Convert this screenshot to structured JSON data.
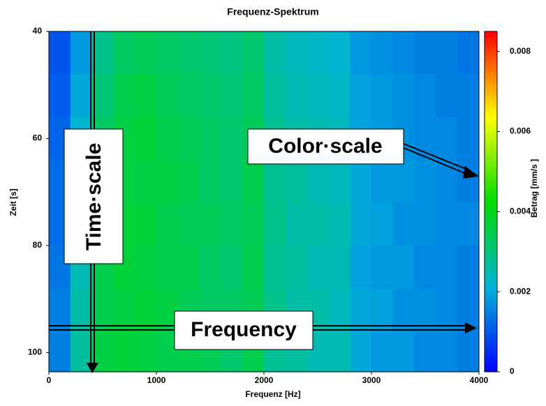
{
  "chart_data": {
    "type": "heatmap",
    "title": "Frequenz-Spektrum",
    "x_label": "Frequenz [Hz]",
    "y_label": "Zeit [s]",
    "colorbar_label": "Betrag [mm/s ]",
    "x": [
      100,
      300,
      500,
      700,
      900,
      1100,
      1300,
      1500,
      1700,
      1900,
      2100,
      2300,
      2500,
      2700,
      2900,
      3100,
      3300,
      3500,
      3700,
      3900
    ],
    "y": [
      44,
      52,
      60,
      68,
      76,
      84,
      92,
      100
    ],
    "z": [
      [
        0.001,
        0.0018,
        0.0029,
        0.0033,
        0.0034,
        0.0033,
        0.0032,
        0.0031,
        0.003,
        0.0032,
        0.0026,
        0.0024,
        0.0023,
        0.0022,
        0.0018,
        0.0017,
        0.0016,
        0.0015,
        0.0015,
        0.0014
      ],
      [
        0.0011,
        0.002,
        0.0031,
        0.0035,
        0.0036,
        0.0034,
        0.0033,
        0.0032,
        0.0031,
        0.0033,
        0.0027,
        0.0025,
        0.0024,
        0.0023,
        0.0019,
        0.0018,
        0.0017,
        0.0016,
        0.0015,
        0.0015
      ],
      [
        0.0012,
        0.0022,
        0.0033,
        0.0036,
        0.0037,
        0.0035,
        0.0034,
        0.0033,
        0.0032,
        0.0034,
        0.0028,
        0.0026,
        0.0025,
        0.0024,
        0.0019,
        0.0018,
        0.0017,
        0.0016,
        0.0016,
        0.0015
      ],
      [
        0.0013,
        0.0023,
        0.0034,
        0.0036,
        0.0036,
        0.0036,
        0.0035,
        0.0033,
        0.0032,
        0.0035,
        0.0028,
        0.0027,
        0.0025,
        0.0024,
        0.002,
        0.0018,
        0.0018,
        0.0017,
        0.0016,
        0.0015
      ],
      [
        0.0013,
        0.0024,
        0.0034,
        0.0037,
        0.0037,
        0.0035,
        0.0034,
        0.0034,
        0.0033,
        0.0034,
        0.0029,
        0.0026,
        0.0026,
        0.0025,
        0.002,
        0.0019,
        0.0017,
        0.0017,
        0.0016,
        0.0016
      ],
      [
        0.0014,
        0.0025,
        0.0035,
        0.0037,
        0.0036,
        0.0035,
        0.0035,
        0.0033,
        0.0032,
        0.0035,
        0.0028,
        0.0027,
        0.0025,
        0.0025,
        0.0019,
        0.0018,
        0.0018,
        0.0016,
        0.0016,
        0.0015
      ],
      [
        0.0015,
        0.0026,
        0.0035,
        0.0036,
        0.0037,
        0.0036,
        0.0034,
        0.0033,
        0.0033,
        0.0034,
        0.0029,
        0.0026,
        0.0026,
        0.0024,
        0.002,
        0.0019,
        0.0017,
        0.0017,
        0.0016,
        0.0015
      ],
      [
        0.0015,
        0.0027,
        0.0036,
        0.0037,
        0.0036,
        0.0035,
        0.0035,
        0.0034,
        0.0032,
        0.0035,
        0.0028,
        0.0027,
        0.0025,
        0.0025,
        0.002,
        0.0018,
        0.0018,
        0.0016,
        0.0016,
        0.0015
      ]
    ],
    "xlim": [
      0,
      4000
    ],
    "xticks": [
      0,
      1000,
      2000,
      3000,
      4000
    ],
    "ylim": [
      40,
      103.6
    ],
    "yticks": [
      40,
      60,
      80,
      100
    ],
    "clim": [
      0,
      0.0085
    ],
    "cticks": [
      0,
      0.002,
      0.004,
      0.006,
      0.008
    ],
    "colormap": [
      "#0000ff",
      "#00b4d8",
      "#00dc00",
      "#ffff00",
      "#ff0000"
    ],
    "annotations": [
      "Time·scale",
      "Color·scale",
      "Frequency"
    ]
  }
}
